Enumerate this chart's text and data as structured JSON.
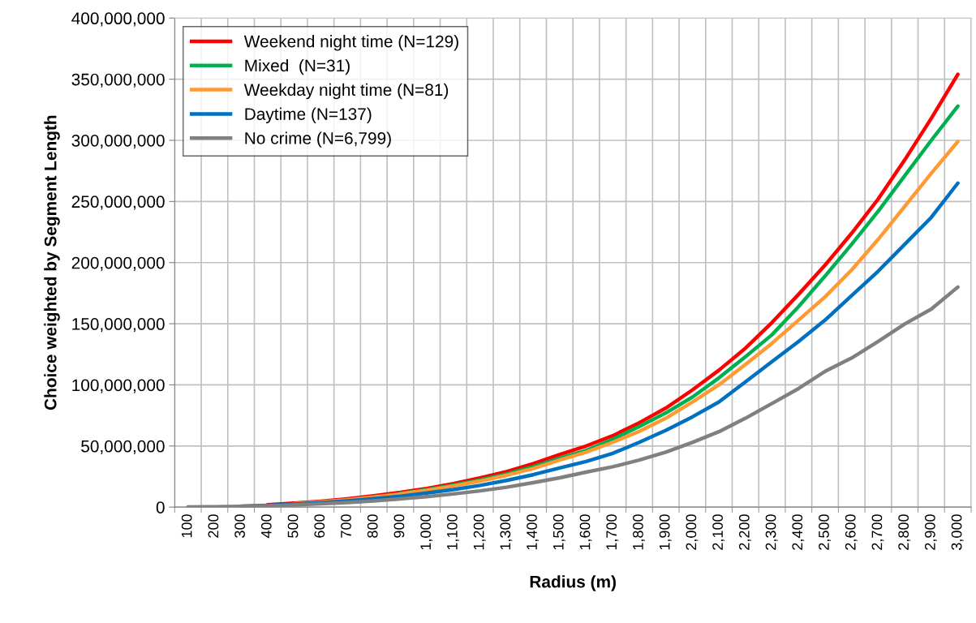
{
  "chart_data": {
    "type": "line",
    "xlabel": "Radius (m)",
    "ylabel": "Choice weighted by Segment Length",
    "categories": [
      "100",
      "200",
      "300",
      "400",
      "500",
      "600",
      "700",
      "800",
      "900",
      "1,000",
      "1,100",
      "1,200",
      "1,300",
      "1,400",
      "1,500",
      "1,600",
      "1,700",
      "1,800",
      "1,900",
      "2,000",
      "2,100",
      "2,200",
      "2,300",
      "2,400",
      "2,500",
      "2,600",
      "2,700",
      "2,800",
      "2,900",
      "3,000"
    ],
    "series": [
      {
        "name": "Weekend night time (N=129)",
        "color": "#ff0000",
        "values": [
          null,
          null,
          null,
          2000000,
          3200000,
          4800000,
          6800000,
          9200000,
          12000000,
          15300000,
          19200000,
          23800000,
          29000000,
          35500000,
          43000000,
          50000000,
          58400000,
          69000000,
          81000000,
          95800000,
          112000000,
          130000000,
          151000000,
          174000000,
          198000000,
          224000000,
          252000000,
          284000000,
          318000000,
          354000000
        ]
      },
      {
        "name": "Mixed  (N=31)",
        "color": "#00b050",
        "values": [
          null,
          null,
          null,
          null,
          null,
          null,
          null,
          null,
          11200000,
          14300000,
          18000000,
          22200000,
          27000000,
          33000000,
          40000000,
          46300000,
          55500000,
          66000000,
          77000000,
          90000000,
          105700000,
          123000000,
          141000000,
          164000000,
          189000000,
          215000000,
          242000000,
          271000000,
          300000000,
          328000000
        ]
      },
      {
        "name": "Weekday night time (N=81)",
        "color": "#ff9933",
        "values": [
          null,
          null,
          null,
          null,
          2800000,
          4300000,
          6000000,
          8200000,
          10800000,
          13800000,
          17300000,
          21300000,
          26000000,
          31500000,
          38500000,
          45000000,
          53000000,
          62000000,
          72700000,
          86000000,
          100000000,
          116700000,
          134000000,
          153000000,
          172000000,
          194000000,
          219000000,
          246000000,
          273000000,
          299000000
        ]
      },
      {
        "name": "Daytime (N=137)",
        "color": "#0070c0",
        "values": [
          null,
          null,
          800000,
          1500000,
          2400000,
          3600000,
          5100000,
          6900000,
          9000000,
          11500000,
          14400000,
          17800000,
          21800000,
          26500000,
          32000000,
          37400000,
          44000000,
          53000000,
          62800000,
          73800000,
          86000000,
          102400000,
          119000000,
          135500000,
          153000000,
          173000000,
          193000000,
          215000000,
          237000000,
          265000000
        ]
      },
      {
        "name": "No crime (N=6,799)",
        "color": "#808080",
        "values": [
          100000,
          300000,
          600000,
          1100000,
          1800000,
          2700000,
          3800000,
          5100000,
          6700000,
          8600000,
          10800000,
          13300000,
          16300000,
          20000000,
          24000000,
          28600000,
          33000000,
          38500000,
          45000000,
          52900000,
          61700000,
          72700000,
          84800000,
          97000000,
          111000000,
          122000000,
          135500000,
          149800000,
          162000000,
          180000000
        ]
      }
    ],
    "ylim": [
      0,
      400000000
    ],
    "yticks": [
      {
        "value": 0,
        "label": "0"
      },
      {
        "value": 50000000,
        "label": "50,000,000"
      },
      {
        "value": 100000000,
        "label": "100,000,000"
      },
      {
        "value": 150000000,
        "label": "150,000,000"
      },
      {
        "value": 200000000,
        "label": "200,000,000"
      },
      {
        "value": 250000000,
        "label": "250,000,000"
      },
      {
        "value": 300000000,
        "label": "300,000,000"
      },
      {
        "value": 350000000,
        "label": "350,000,000"
      },
      {
        "value": 400000000,
        "label": "400,000,000"
      }
    ],
    "grid": true,
    "legend": "top left",
    "marker": "none",
    "line_style": "solid"
  }
}
